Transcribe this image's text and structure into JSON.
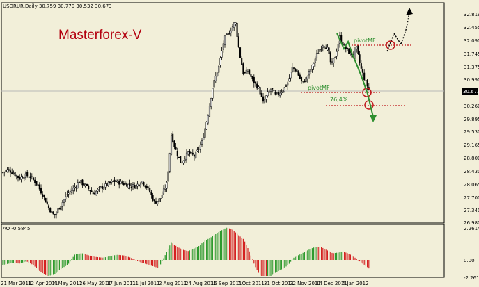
{
  "window": {
    "symbol_header": "USDRUR,Daily  30.759 30.770 30.532 30.673",
    "watermark": "Masterforex-V"
  },
  "price_axis": {
    "ticks": [
      "32.819",
      "32.455",
      "32.090",
      "31.745",
      "31.375",
      "30.990",
      "30.260",
      "29.895",
      "29.530",
      "29.165",
      "28.800",
      "28.430",
      "28.065",
      "27.700",
      "27.340",
      "26.980"
    ],
    "current": "30.673"
  },
  "ao_panel": {
    "label": "AO -0.5845",
    "ticks": [
      "2.2614",
      "0.00",
      "-2.2614"
    ]
  },
  "time_axis": {
    "labels": [
      "21 Mar 2011",
      "12 Apr 2011",
      "4 May 2011",
      "26 May 2011",
      "17 Jun 2011",
      "11 Jul 2011",
      "2 Aug 2011",
      "24 Aug 2011",
      "15 Sep 2011",
      "7 Oct 2011",
      "31 Oct 2011",
      "22 Nov 2011",
      "14 Dec 2011",
      "5 Jan 2012"
    ]
  },
  "annotations": {
    "pivot_upper": "pivotMF",
    "pivot_lower": "pivotMF",
    "fib_level": "76,4%"
  },
  "colors": {
    "background": "#f2efd9",
    "candles": "#000000",
    "ao_up": "#2e9a2e",
    "ao_down": "#d42020",
    "annotation_green": "#2f8f2f",
    "annotation_red": "#c0171c",
    "brand": "#b3000f"
  },
  "chart_data": {
    "type": "candlestick",
    "symbol": "USDRUR",
    "timeframe": "Daily",
    "ohlc_last": {
      "open": 30.759,
      "high": 30.77,
      "low": 30.532,
      "close": 30.673
    },
    "price_range": [
      26.98,
      32.96
    ],
    "close_path": [
      [
        0,
        28.35
      ],
      [
        8,
        28.42
      ],
      [
        16,
        28.32
      ],
      [
        24,
        28.18
      ],
      [
        32,
        28.28
      ],
      [
        40,
        28.22
      ],
      [
        48,
        28.05
      ],
      [
        58,
        27.7
      ],
      [
        66,
        27.35
      ],
      [
        74,
        27.12
      ],
      [
        82,
        27.38
      ],
      [
        92,
        27.72
      ],
      [
        102,
        27.9
      ],
      [
        110,
        28.1
      ],
      [
        120,
        27.95
      ],
      [
        130,
        27.75
      ],
      [
        140,
        27.9
      ],
      [
        150,
        28.0
      ],
      [
        160,
        28.1
      ],
      [
        170,
        28.05
      ],
      [
        180,
        28.0
      ],
      [
        190,
        27.95
      ],
      [
        200,
        28.1
      ],
      [
        210,
        27.85
      ],
      [
        218,
        27.5
      ],
      [
        226,
        27.6
      ],
      [
        236,
        28.05
      ],
      [
        242,
        29.4
      ],
      [
        248,
        29.0
      ],
      [
        256,
        28.6
      ],
      [
        266,
        28.9
      ],
      [
        276,
        28.8
      ],
      [
        286,
        29.2
      ],
      [
        294,
        29.9
      ],
      [
        302,
        30.8
      ],
      [
        310,
        31.3
      ],
      [
        318,
        32.1
      ],
      [
        326,
        32.3
      ],
      [
        334,
        32.6
      ],
      [
        340,
        31.7
      ],
      [
        346,
        31.1
      ],
      [
        352,
        31.2
      ],
      [
        360,
        30.9
      ],
      [
        368,
        30.7
      ],
      [
        374,
        30.3
      ],
      [
        380,
        30.55
      ],
      [
        386,
        30.7
      ],
      [
        392,
        30.5
      ],
      [
        398,
        30.6
      ],
      [
        404,
        30.7
      ],
      [
        410,
        30.9
      ],
      [
        416,
        31.3
      ],
      [
        422,
        31.2
      ],
      [
        430,
        30.85
      ],
      [
        436,
        31.0
      ],
      [
        444,
        31.3
      ],
      [
        452,
        31.7
      ],
      [
        460,
        31.95
      ],
      [
        466,
        31.85
      ],
      [
        472,
        31.35
      ],
      [
        478,
        31.65
      ],
      [
        484,
        32.15
      ],
      [
        490,
        31.9
      ],
      [
        496,
        31.75
      ],
      [
        502,
        31.6
      ],
      [
        508,
        31.85
      ],
      [
        514,
        31.3
      ],
      [
        520,
        30.95
      ],
      [
        526,
        30.67
      ]
    ],
    "ao_histogram": [
      [
        4,
        -0.3
      ],
      [
        14,
        -0.2
      ],
      [
        24,
        -0.25
      ],
      [
        34,
        -0.1
      ],
      [
        44,
        -0.35
      ],
      [
        54,
        -0.8
      ],
      [
        64,
        -1.1
      ],
      [
        74,
        -1.0
      ],
      [
        84,
        -0.6
      ],
      [
        94,
        -0.3
      ],
      [
        104,
        0.4
      ],
      [
        114,
        0.45
      ],
      [
        124,
        0.3
      ],
      [
        134,
        0.2
      ],
      [
        144,
        0.15
      ],
      [
        154,
        0.25
      ],
      [
        164,
        0.35
      ],
      [
        174,
        0.3
      ],
      [
        184,
        0.15
      ],
      [
        194,
        -0.1
      ],
      [
        204,
        -0.25
      ],
      [
        214,
        -0.4
      ],
      [
        224,
        -0.55
      ],
      [
        234,
        0.4
      ],
      [
        242,
        1.2
      ],
      [
        250,
        0.9
      ],
      [
        258,
        0.7
      ],
      [
        266,
        0.6
      ],
      [
        274,
        0.75
      ],
      [
        282,
        0.95
      ],
      [
        290,
        1.3
      ],
      [
        298,
        1.5
      ],
      [
        306,
        1.75
      ],
      [
        314,
        2.0
      ],
      [
        322,
        2.2
      ],
      [
        330,
        2.05
      ],
      [
        338,
        1.7
      ],
      [
        346,
        1.4
      ],
      [
        354,
        0.6
      ],
      [
        362,
        -0.4
      ],
      [
        370,
        -1.1
      ],
      [
        378,
        -1.3
      ],
      [
        386,
        -1.05
      ],
      [
        394,
        -0.8
      ],
      [
        402,
        -0.6
      ],
      [
        410,
        -0.35
      ],
      [
        418,
        0.15
      ],
      [
        426,
        0.35
      ],
      [
        434,
        0.55
      ],
      [
        442,
        0.75
      ],
      [
        450,
        0.9
      ],
      [
        458,
        0.85
      ],
      [
        466,
        0.65
      ],
      [
        474,
        0.45
      ],
      [
        482,
        0.5
      ],
      [
        490,
        0.55
      ],
      [
        498,
        0.4
      ],
      [
        506,
        0.15
      ],
      [
        514,
        -0.15
      ],
      [
        520,
        -0.35
      ],
      [
        526,
        -0.58
      ]
    ],
    "ao_range": [
      -2.2614,
      2.2614
    ]
  }
}
